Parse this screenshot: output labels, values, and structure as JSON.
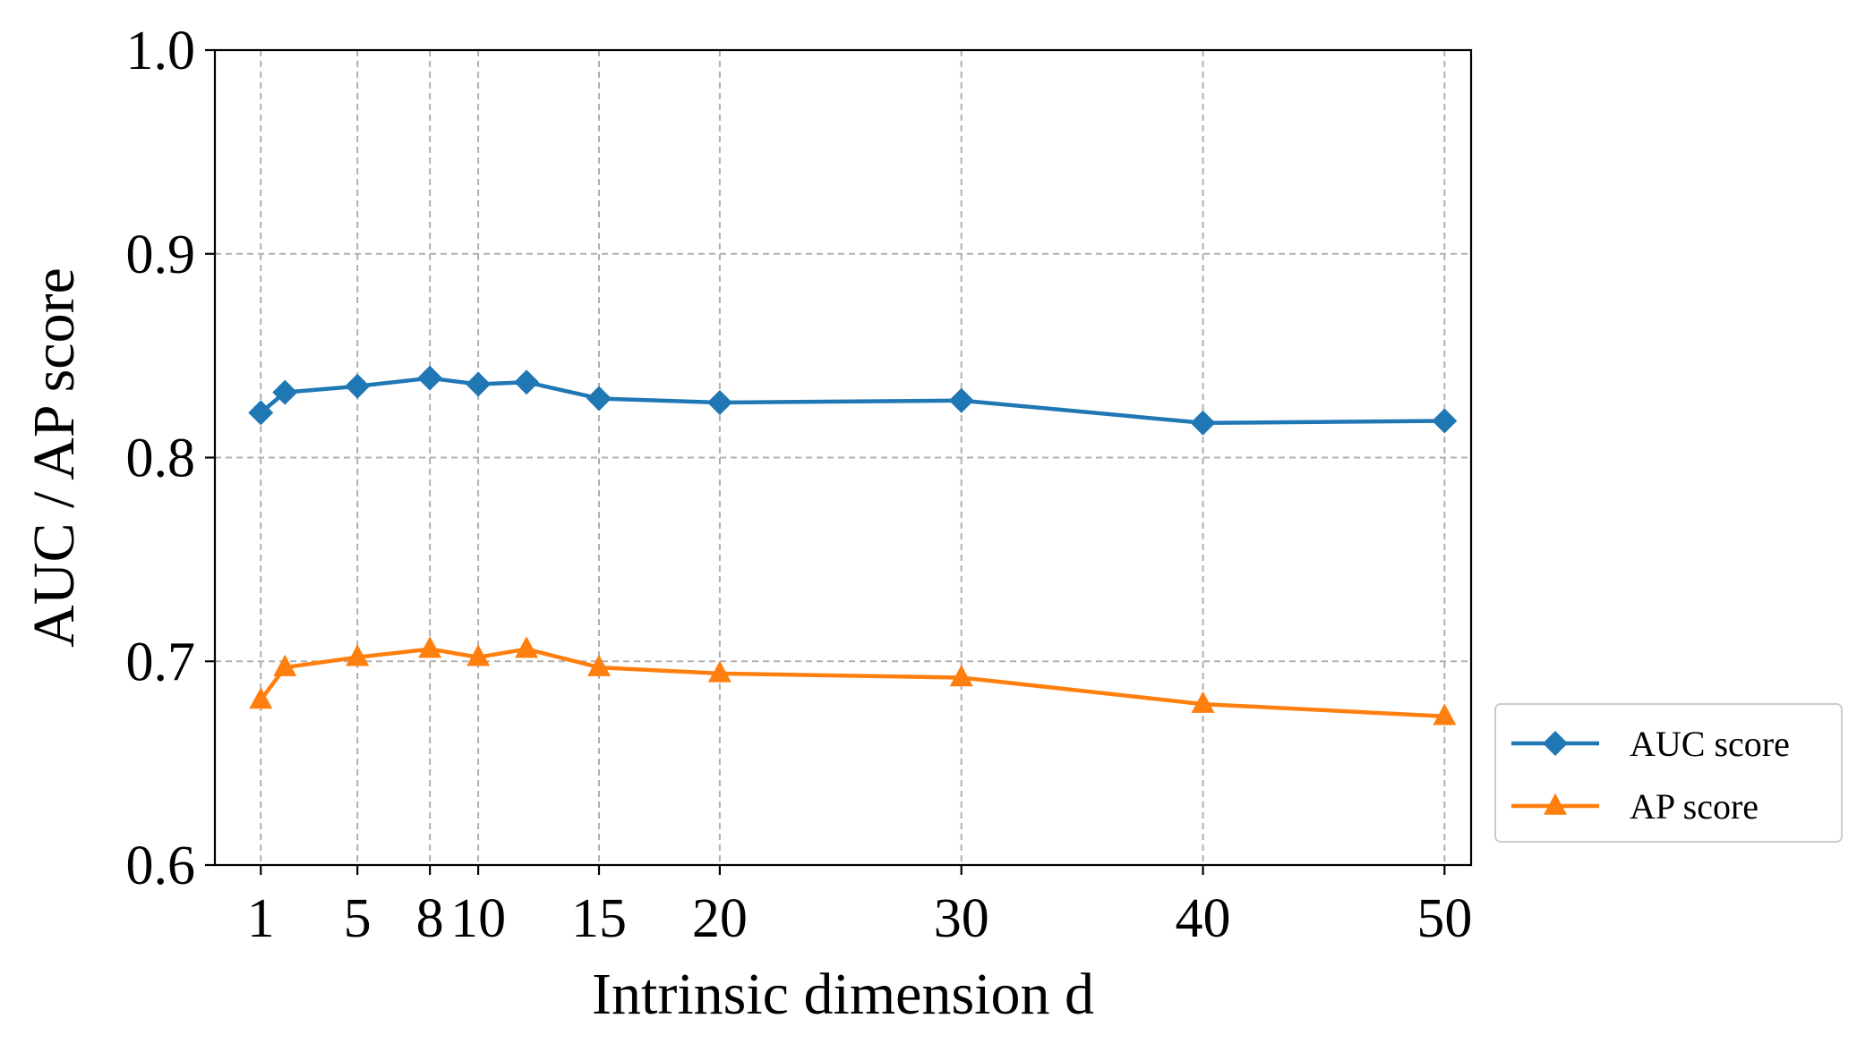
{
  "chart_data": {
    "type": "line",
    "title": "",
    "xlabel": "Intrinsic dimension d",
    "ylabel": "AUC / AP score",
    "x": [
      1,
      2,
      5,
      8,
      10,
      12,
      15,
      20,
      30,
      40,
      50
    ],
    "xticks": [
      1,
      5,
      8,
      10,
      15,
      20,
      30,
      40,
      50
    ],
    "xtick_labels": [
      "1",
      "5",
      "8",
      "10",
      "15",
      "20",
      "30",
      "40",
      "50"
    ],
    "xlim": [
      -0.9,
      51.1
    ],
    "ylim": [
      0.6,
      1.0
    ],
    "yticks": [
      0.6,
      0.7,
      0.8,
      0.9,
      1.0
    ],
    "ytick_labels": [
      "0.6",
      "0.7",
      "0.8",
      "0.9",
      "1.0"
    ],
    "grid": true,
    "legend_position": "outside-bottom-right",
    "series": [
      {
        "name": "AUC score",
        "color": "#1f77b4",
        "marker": "diamond",
        "values": [
          0.822,
          0.832,
          0.835,
          0.839,
          0.836,
          0.837,
          0.829,
          0.827,
          0.828,
          0.817,
          0.818
        ]
      },
      {
        "name": "AP score",
        "color": "#ff7f0e",
        "marker": "triangle",
        "values": [
          0.681,
          0.697,
          0.702,
          0.706,
          0.702,
          0.706,
          0.697,
          0.694,
          0.692,
          0.679,
          0.673
        ]
      }
    ]
  }
}
